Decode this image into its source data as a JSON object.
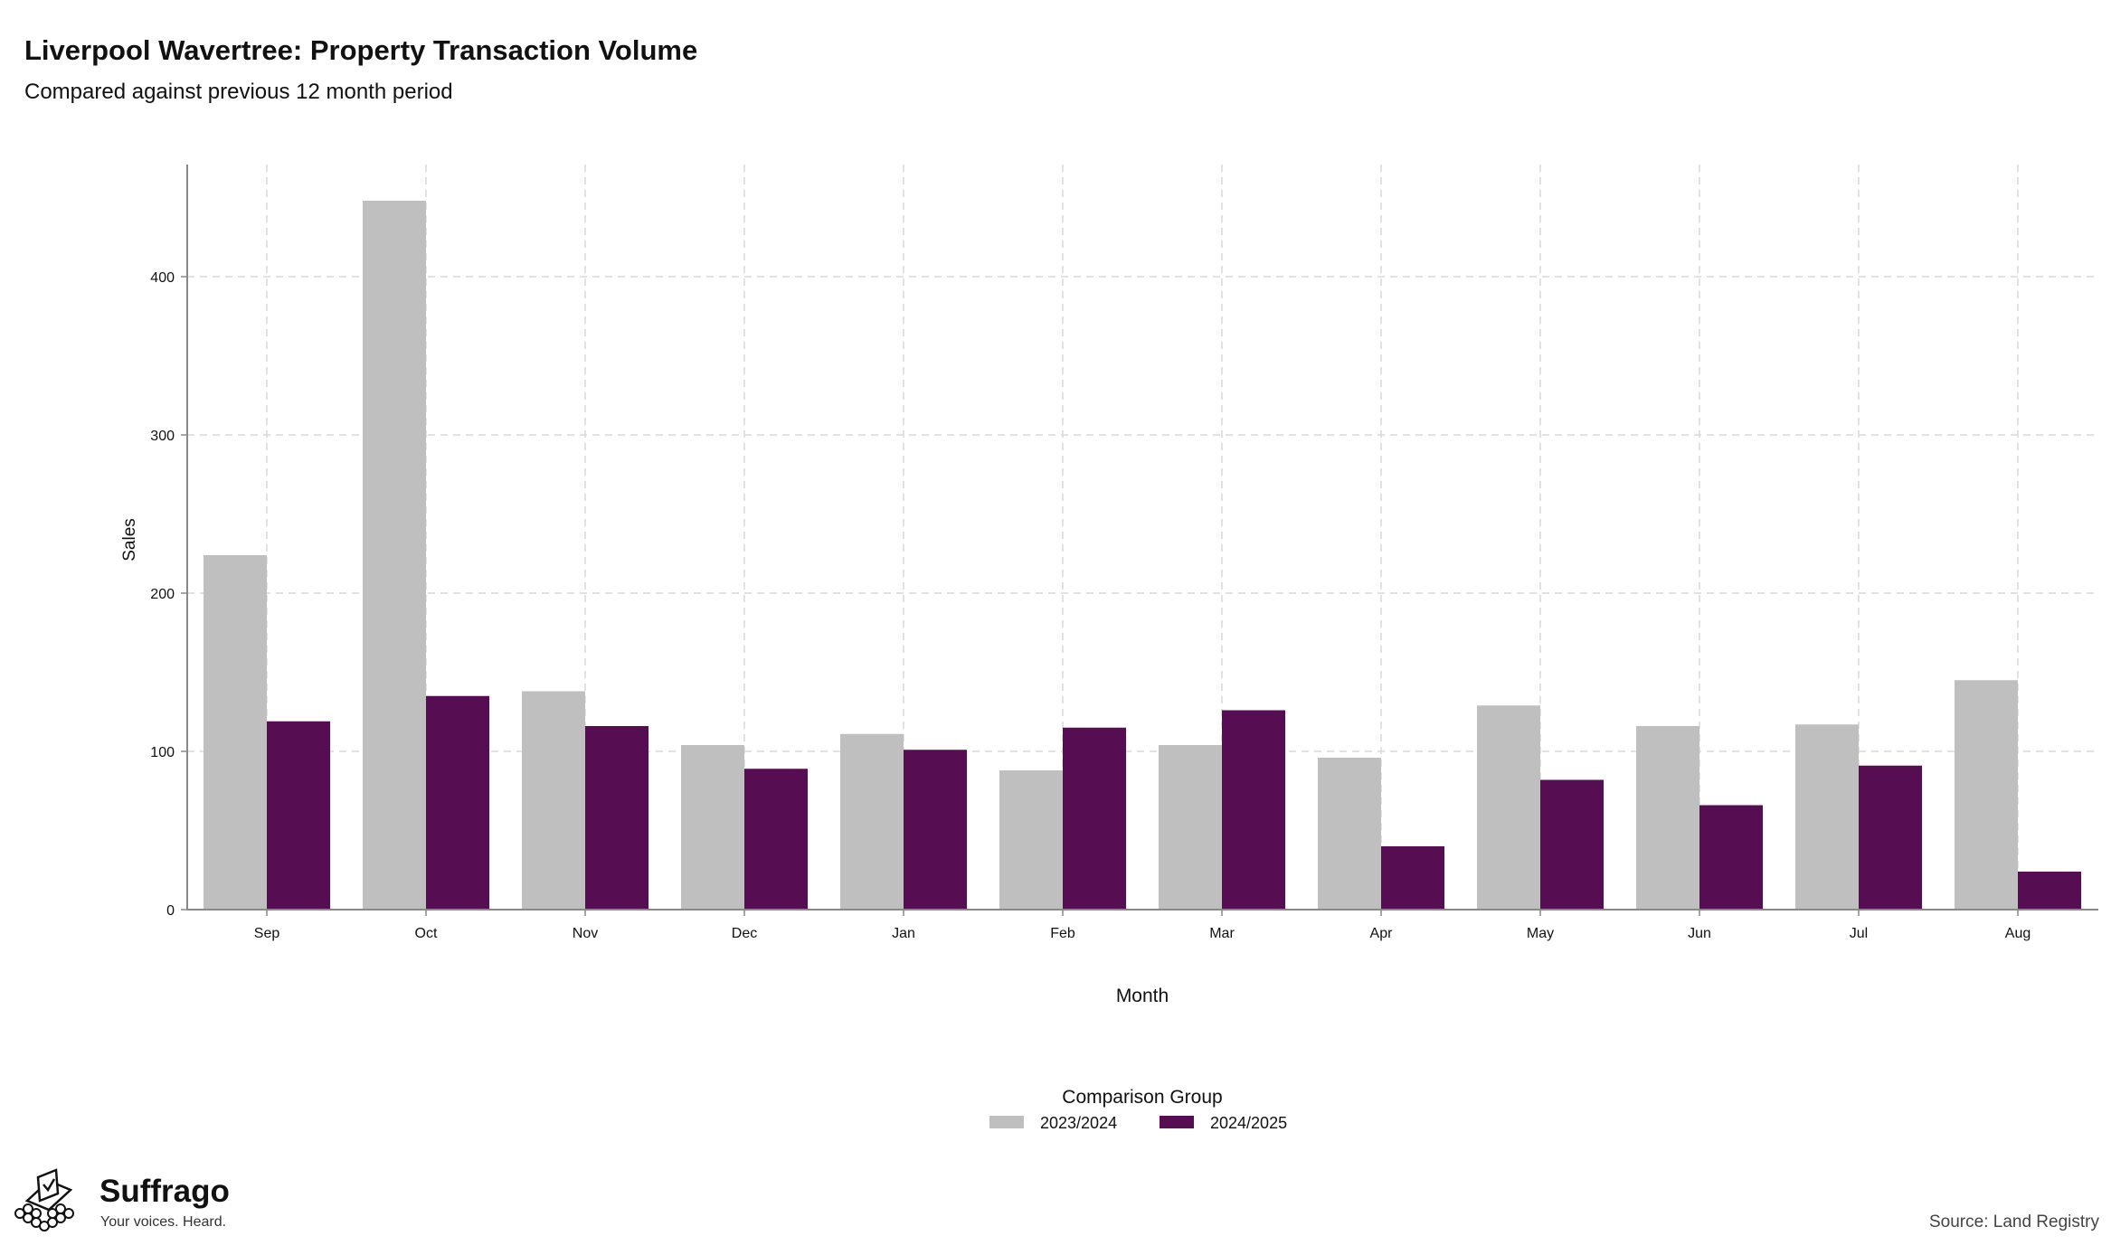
{
  "header": {
    "title": "Liverpool Wavertree: Property Transaction Volume",
    "subtitle": "Compared against previous 12 month period"
  },
  "chart_data": {
    "type": "bar",
    "categories": [
      "Sep",
      "Oct",
      "Nov",
      "Dec",
      "Jan",
      "Feb",
      "Mar",
      "Apr",
      "May",
      "Jun",
      "Jul",
      "Aug"
    ],
    "series": [
      {
        "name": "2023/2024",
        "color": "#bfbfbf",
        "values": [
          224,
          448,
          138,
          104,
          111,
          88,
          104,
          96,
          129,
          116,
          117,
          145
        ]
      },
      {
        "name": "2024/2025",
        "color": "#560d51",
        "values": [
          119,
          135,
          116,
          89,
          101,
          115,
          126,
          40,
          82,
          66,
          91,
          24
        ]
      }
    ],
    "xlabel": "Month",
    "ylabel": "Sales",
    "ylim": [
      0,
      470
    ],
    "yticks": [
      0,
      100,
      200,
      300,
      400
    ],
    "grid": true,
    "legend": {
      "title": "Comparison Group",
      "position": "bottom"
    }
  },
  "footer": {
    "brand_name": "Suffrago",
    "brand_tagline": "Your voices. Heard.",
    "source": "Source: Land Registry"
  }
}
